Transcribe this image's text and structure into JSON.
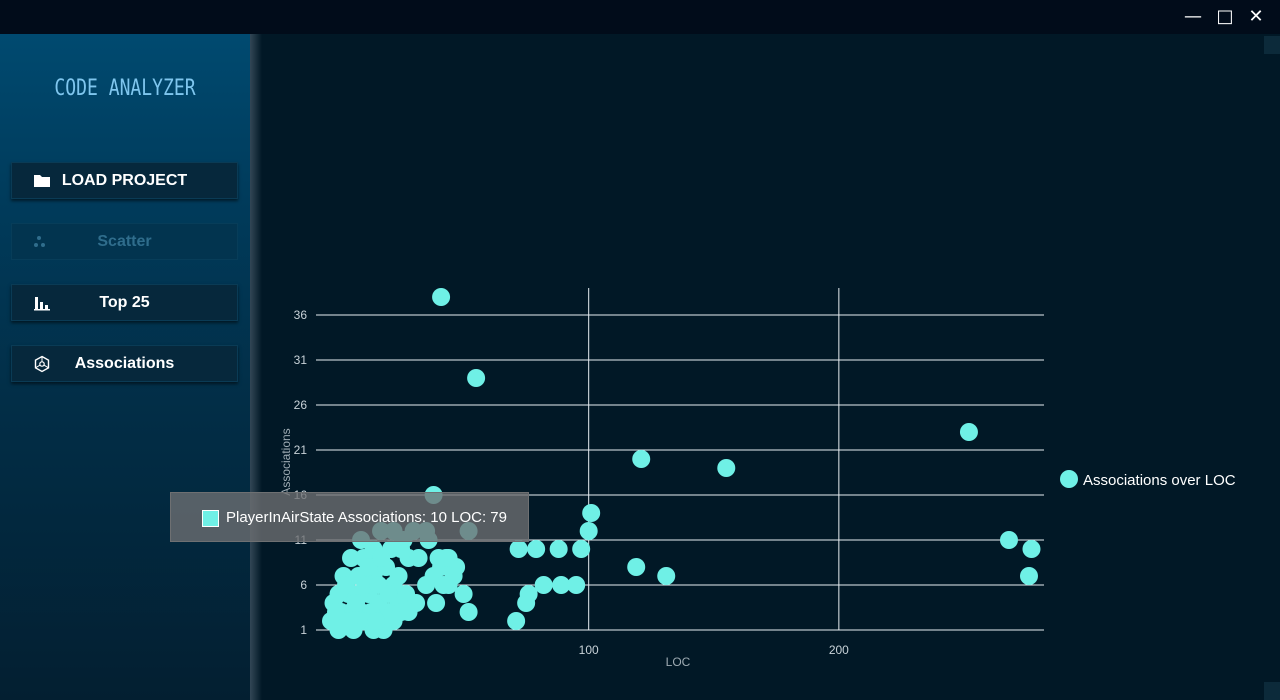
{
  "window": {
    "minimize_glyph": "—",
    "maximize_glyph": "□",
    "close_glyph": "✕"
  },
  "sidebar": {
    "app_title": "CODE ANALYZER",
    "buttons": [
      {
        "label": "LOAD PROJECT",
        "icon": "folder-icon",
        "enabled": true
      },
      {
        "label": "Scatter",
        "icon": "scatter-icon",
        "enabled": false
      },
      {
        "label": "Top 25",
        "icon": "bar-chart-icon",
        "enabled": true
      },
      {
        "label": "Associations",
        "icon": "network-icon",
        "enabled": true
      }
    ]
  },
  "tooltip": {
    "text": "PlayerInAirState  Associations: 10  LOC: 79"
  },
  "colors": {
    "accent": "#6ff0e6",
    "background": "#011826",
    "sidebar_top": "#004a70",
    "title": "#7fc6ee"
  },
  "chart_data": {
    "type": "scatter",
    "xlabel": "LOC",
    "ylabel": "Associations",
    "xlim": [
      -9,
      282
    ],
    "ylim": [
      1,
      39
    ],
    "x_ticks": [
      100,
      200
    ],
    "y_ticks": [
      1,
      6,
      11,
      16,
      21,
      26,
      31,
      36
    ],
    "legend_position": "right",
    "series": [
      {
        "name": "Associations over LOC",
        "points": [
          [
            41,
            38
          ],
          [
            55,
            29
          ],
          [
            121,
            20
          ],
          [
            155,
            19
          ],
          [
            252,
            23
          ],
          [
            38,
            16
          ],
          [
            101,
            14
          ],
          [
            100,
            12
          ],
          [
            268,
            11
          ],
          [
            277,
            10
          ],
          [
            276,
            7
          ],
          [
            119,
            8
          ],
          [
            131,
            7
          ],
          [
            88,
            10
          ],
          [
            97,
            10
          ],
          [
            79,
            10
          ],
          [
            72,
            10
          ],
          [
            95,
            6
          ],
          [
            89,
            6
          ],
          [
            82,
            6
          ],
          [
            76,
            5
          ],
          [
            75,
            4
          ],
          [
            71,
            2
          ],
          [
            44,
            6
          ],
          [
            52,
            3
          ],
          [
            50,
            5
          ],
          [
            47,
            8
          ],
          [
            41,
            8
          ],
          [
            40,
            9
          ],
          [
            44,
            9
          ],
          [
            46,
            7
          ],
          [
            38,
            7
          ],
          [
            35,
            12
          ],
          [
            30,
            12
          ],
          [
            25,
            10
          ],
          [
            21,
            10
          ],
          [
            17,
            12
          ],
          [
            14,
            10
          ],
          [
            10,
            9
          ],
          [
            5,
            9
          ],
          [
            2,
            7
          ],
          [
            8,
            7
          ],
          [
            14,
            7
          ],
          [
            19,
            8
          ],
          [
            22,
            6
          ],
          [
            27,
            5
          ],
          [
            31,
            4
          ],
          [
            35,
            6
          ],
          [
            39,
            4
          ],
          [
            42,
            6
          ],
          [
            24,
            4
          ],
          [
            20,
            3
          ],
          [
            16,
            4
          ],
          [
            12,
            5
          ],
          [
            8,
            5
          ],
          [
            4,
            5
          ],
          [
            0,
            5
          ],
          [
            -2,
            4
          ],
          [
            1,
            3
          ],
          [
            5,
            3
          ],
          [
            9,
            3
          ],
          [
            13,
            3
          ],
          [
            18,
            2
          ],
          [
            22,
            2
          ],
          [
            25,
            3
          ],
          [
            28,
            3
          ],
          [
            -3,
            2
          ],
          [
            0,
            1
          ],
          [
            3,
            2
          ],
          [
            6,
            1
          ],
          [
            10,
            2
          ],
          [
            14,
            1
          ],
          [
            18,
            1
          ],
          [
            7,
            4
          ],
          [
            11,
            6
          ],
          [
            16,
            6
          ],
          [
            20,
            5
          ],
          [
            24,
            7
          ],
          [
            28,
            9
          ],
          [
            3,
            6
          ],
          [
            -1,
            3
          ],
          [
            12,
            8
          ],
          [
            32,
            9
          ],
          [
            36,
            11
          ],
          [
            43,
            9
          ],
          [
            52,
            12
          ],
          [
            17,
            9
          ],
          [
            22,
            12
          ],
          [
            26,
            11
          ],
          [
            9,
            11
          ],
          [
            4,
            2
          ],
          [
            15,
            2
          ]
        ]
      }
    ]
  }
}
